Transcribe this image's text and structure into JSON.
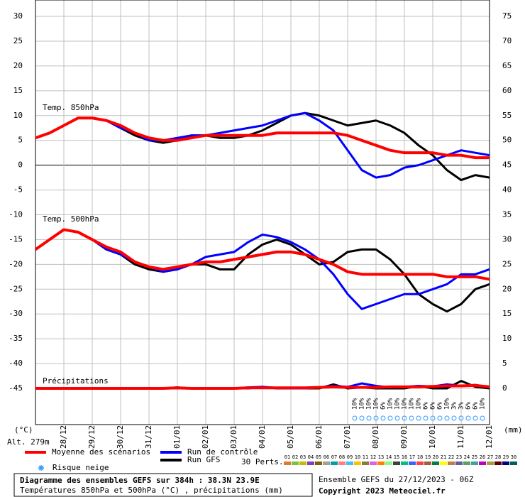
{
  "chart_data": {
    "type": "line",
    "x": [
      0,
      12,
      24,
      36,
      48,
      60,
      72,
      84,
      96,
      108,
      120,
      132,
      144,
      156,
      168,
      180,
      192,
      204,
      216,
      228,
      240,
      252,
      264,
      276,
      288,
      300,
      312,
      324,
      336,
      348,
      360,
      372,
      384
    ],
    "xlim": [
      0,
      384
    ],
    "xticks": [
      {
        "value": 24,
        "label": "28/12"
      },
      {
        "value": 48,
        "label": "29/12"
      },
      {
        "value": 72,
        "label": "30/12"
      },
      {
        "value": 96,
        "label": "31/12"
      },
      {
        "value": 120,
        "label": "01/01"
      },
      {
        "value": 144,
        "label": "02/01"
      },
      {
        "value": 168,
        "label": "03/01"
      },
      {
        "value": 192,
        "label": "04/01"
      },
      {
        "value": 216,
        "label": "05/01"
      },
      {
        "value": 240,
        "label": "06/01"
      },
      {
        "value": 264,
        "label": "07/01"
      },
      {
        "value": 288,
        "label": "08/01"
      },
      {
        "value": 312,
        "label": "09/01"
      },
      {
        "value": 336,
        "label": "10/01"
      },
      {
        "value": 360,
        "label": "11/01"
      },
      {
        "value": 384,
        "label": "12/01"
      }
    ],
    "ylim": [
      -52.3,
      33.3
    ],
    "yticks": [
      30,
      25,
      20,
      15,
      10,
      5,
      0,
      -5,
      -10,
      -15,
      -20,
      -25,
      -30,
      -35,
      -40,
      -45
    ],
    "y2lim": [
      -7.3,
      78.3
    ],
    "y2ticks": [
      75,
      70,
      65,
      60,
      55,
      50,
      45,
      40,
      35,
      30,
      25,
      20,
      15,
      10,
      5,
      0
    ],
    "y_unit": "(°C)",
    "y2_unit": "(mm)",
    "altitude": "Alt. 279m",
    "panel_labels": [
      "Temp. 850hPa",
      "Temp. 500hPa",
      "Précipitations"
    ],
    "grid": true,
    "series": [
      {
        "name": "Moyenne des scénarios",
        "color": "#ff0000",
        "values_850": [
          5.5,
          6.5,
          8,
          9.5,
          9.5,
          9,
          8,
          6.5,
          5.5,
          5,
          5,
          5.5,
          6,
          6,
          6,
          6,
          6,
          6.5,
          6.5,
          6.5,
          6.5,
          6.5,
          6,
          5,
          4,
          3,
          2.5,
          2.5,
          2.5,
          2,
          2,
          1.5,
          1.5
        ],
        "values_500": [
          -17,
          -15,
          -13,
          -13.5,
          -15,
          -16.5,
          -17.5,
          -19.5,
          -20.5,
          -21,
          -20.5,
          -20,
          -19.5,
          -19.5,
          -19,
          -18.5,
          -18,
          -17.5,
          -17.5,
          -18,
          -19,
          -20,
          -21.5,
          -22,
          -22,
          -22,
          -22,
          -22,
          -22,
          -22.5,
          -22.5,
          -22.5,
          -23
        ],
        "values_precip": [
          0,
          0,
          0,
          0,
          0,
          0,
          0,
          0,
          0,
          0,
          0.1,
          0,
          0,
          0,
          0,
          0.1,
          0.1,
          0.1,
          0.1,
          0.1,
          0.2,
          0.3,
          0.2,
          0.2,
          0.2,
          0.3,
          0.3,
          0.3,
          0.4,
          0.5,
          0.5,
          0.6,
          0.3
        ]
      },
      {
        "name": "Run de contrôle",
        "color": "#0000ff",
        "values_850": [
          5.5,
          6.5,
          8,
          9.5,
          9.5,
          9,
          7.5,
          6.5,
          5,
          5,
          5.5,
          6,
          6,
          6.5,
          7,
          7.5,
          8,
          9,
          10,
          10.5,
          9,
          7,
          3,
          -1,
          -2.5,
          -2,
          -0.5,
          0,
          1,
          2,
          3,
          2.5,
          2
        ],
        "values_500": [
          -17,
          -15,
          -13,
          -13.5,
          -15,
          -17,
          -18,
          -19.5,
          -20.5,
          -21.5,
          -21,
          -20,
          -18.5,
          -18,
          -17.5,
          -15.5,
          -14,
          -14.5,
          -15.5,
          -17,
          -19,
          -22,
          -26,
          -29,
          -28,
          -27,
          -26,
          -26,
          -25,
          -24,
          -22,
          -22,
          -21
        ],
        "values_precip": [
          0,
          0,
          0,
          0,
          0,
          0,
          0,
          0,
          0,
          0,
          0,
          0,
          0,
          0,
          0,
          0.2,
          0.3,
          0.1,
          0,
          0,
          0.2,
          0.5,
          0.3,
          1,
          0.5,
          0.2,
          0.3,
          0.5,
          0.4,
          0.8,
          0.5,
          0.7,
          0.2
        ]
      },
      {
        "name": "Run GFS",
        "color": "#000000",
        "values_850": [
          5.5,
          6.5,
          8,
          9.5,
          9.5,
          9,
          7.5,
          6,
          5,
          4.5,
          5,
          6,
          6,
          5.5,
          5.5,
          6,
          7,
          8.5,
          10,
          10.5,
          10,
          9,
          8,
          8.5,
          9,
          8,
          6.5,
          4,
          2,
          -1,
          -3,
          -2,
          -2.5
        ],
        "values_500": [
          -17,
          -15,
          -13,
          -13.5,
          -15,
          -17,
          -18,
          -20,
          -21,
          -21.5,
          -21,
          -20,
          -20,
          -21,
          -21,
          -18,
          -16,
          -15,
          -16,
          -18,
          -20,
          -19.5,
          -17.5,
          -17,
          -17,
          -19,
          -22,
          -26,
          -28,
          -29.5,
          -28,
          -25,
          -24
        ],
        "values_precip": [
          0,
          0,
          0,
          0,
          0,
          0,
          0,
          0,
          0,
          0,
          0.2,
          0,
          0,
          0,
          0,
          0,
          0.3,
          0,
          0,
          0,
          0,
          0.8,
          0,
          0.2,
          0,
          0,
          0,
          0.5,
          0,
          0,
          1.5,
          0.3,
          0
        ]
      }
    ],
    "snow_legend": "Risque neige",
    "snow_risk": {
      "x": [
        270,
        276,
        282,
        288,
        294,
        300,
        306,
        312,
        318,
        324,
        330,
        336,
        342,
        348,
        354,
        360,
        366,
        372,
        378
      ],
      "values": [
        10,
        10,
        10,
        10,
        6,
        10,
        10,
        10,
        10,
        10,
        6,
        6,
        6,
        10,
        3,
        3,
        6,
        6,
        10
      ],
      "value_labels": [
        "10%",
        "10%",
        "10%",
        "10%",
        "6%",
        "10%",
        "10%",
        "10%",
        "10%",
        "10%",
        "6%",
        "6%",
        "6%",
        "10%",
        "3%",
        "3%",
        "6%",
        "6%",
        "10%"
      ]
    },
    "perts_label": "30 Perts.",
    "perts": {
      "labels": [
        "01",
        "02",
        "03",
        "04",
        "05",
        "06",
        "07",
        "08",
        "09",
        "10",
        "11",
        "12",
        "13",
        "14",
        "15",
        "16",
        "17",
        "18",
        "19",
        "20",
        "21",
        "22",
        "23",
        "24",
        "25",
        "26",
        "27",
        "28",
        "29",
        "30"
      ],
      "colors": [
        "#e07830",
        "#80c040",
        "#c0c000",
        "#8040c0",
        "#806000",
        "#a0a0a0",
        "#00a0a0",
        "#ff8080",
        "#40c0ff",
        "#ffc000",
        "#808040",
        "#e060e0",
        "#ff8000",
        "#80ff80",
        "#404040",
        "#00c080",
        "#4060ff",
        "#ff4040",
        "#a06040",
        "#008040",
        "#ffff00",
        "#c08040",
        "#6060a0",
        "#60a060",
        "#40a0a0",
        "#c000c0",
        "#a0a040",
        "#600000",
        "#000080",
        "#006060"
      ]
    },
    "footer": {
      "title": "Diagramme des ensembles GEFS sur 384h : 38.3N 23.9E",
      "subtitle": "Températures 850hPa et 500hPa (°C) , précipitations (mm)",
      "run": "Ensemble GEFS du 27/12/2023 - 06Z",
      "copyright": "Copyright 2023 Meteociel.fr"
    }
  }
}
